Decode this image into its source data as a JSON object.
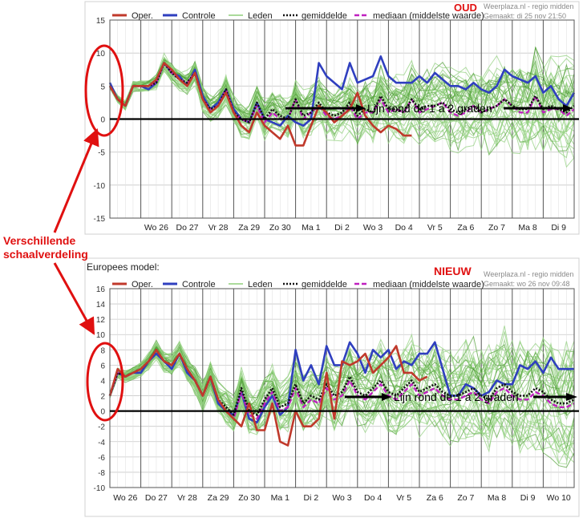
{
  "page": {
    "colors": {
      "operational": "#c0392b",
      "control": "#2f3fbf",
      "members": "#8fcf7a",
      "members_dark": "#4e9e34",
      "median": "#c020c0",
      "annotation": "#e01010",
      "axis_line": "#000000",
      "grid": "#c8c8c8"
    },
    "side_annotation": {
      "line1": "Verschillende",
      "line2": "schaalverdeling"
    },
    "header_caption": "Europees model:"
  },
  "chart_data": [
    {
      "type": "line",
      "id": "oud",
      "stamp": "OUD",
      "source": "Weerplaza.nl - regio midden",
      "made": "Gemaakt: di 25 nov 21:50",
      "legend": [
        "Oper.",
        "Controle",
        "Leden",
        "gemiddelde",
        "mediaan (middelste waarde)"
      ],
      "ylim": [
        -15,
        15
      ],
      "yticks": [
        15,
        10,
        5,
        0,
        -5,
        -10,
        -15
      ],
      "xlim": [
        0,
        60
      ],
      "day_ticks": [
        4,
        8,
        12,
        16,
        20,
        24,
        28,
        32,
        36,
        40,
        44,
        48,
        52,
        56
      ],
      "day_labels": [
        "Wo 26",
        "Do 27",
        "Vr 28",
        "Za 29",
        "Zo 30",
        "Ma 1",
        "Di 2",
        "Wo 3",
        "Do 4",
        "Vr 5",
        "Za 6",
        "Zo 7",
        "Ma 8",
        "Di 9"
      ],
      "annotation": "Lijn rond de 1 a 2 graden",
      "series": [
        {
          "name": "Oper.",
          "x": [
            0,
            1,
            2,
            3,
            4,
            5,
            6,
            7,
            8,
            9,
            10,
            11,
            12,
            13,
            14,
            15,
            16,
            17,
            18,
            19,
            20,
            21,
            22,
            23,
            24,
            25,
            26,
            27,
            28,
            29,
            30,
            31,
            32,
            33,
            34,
            35,
            36,
            37,
            38,
            39
          ],
          "values": [
            5,
            3,
            2,
            5,
            5,
            5,
            6,
            8.5,
            7.5,
            6,
            5,
            7,
            3,
            1,
            2,
            4,
            1,
            -1,
            -2,
            1,
            -1,
            -2,
            -3,
            -1,
            -4,
            -4,
            -1,
            2,
            1,
            -0.5,
            0.5,
            1.5,
            4,
            0.5,
            -1,
            -2,
            -1,
            -1.5,
            -2.5,
            -2.5
          ]
        },
        {
          "name": "Controle",
          "x": [
            0,
            1,
            2,
            3,
            4,
            5,
            6,
            7,
            8,
            9,
            10,
            11,
            12,
            13,
            14,
            15,
            16,
            17,
            18,
            19,
            20,
            21,
            22,
            23,
            24,
            25,
            26,
            27,
            28,
            29,
            30,
            31,
            32,
            33,
            34,
            35,
            36,
            37,
            38,
            39,
            40,
            41,
            42,
            43,
            44,
            45,
            46,
            47,
            48,
            49,
            50,
            51,
            52,
            53,
            54,
            55,
            56,
            57,
            58,
            59,
            60
          ],
          "values": [
            5.5,
            3,
            2,
            5,
            5,
            4.5,
            5.5,
            8.5,
            7,
            6.5,
            5,
            7.5,
            3.5,
            1.5,
            2.5,
            4.5,
            1.5,
            0,
            -0.5,
            2.5,
            0,
            -0.5,
            -1,
            0.5,
            -0.5,
            -1,
            0,
            8.5,
            6.5,
            5.5,
            4.5,
            8.5,
            5.5,
            6,
            6.5,
            9.5,
            6.5,
            5.5,
            5.5,
            5.5,
            6.5,
            5.5,
            7,
            6,
            5,
            5,
            4.5,
            5.5,
            4.5,
            4,
            5,
            7.5,
            6.5,
            6,
            5.5,
            6.5,
            4,
            5,
            3,
            2,
            4
          ]
        },
        {
          "name": "gemiddelde",
          "x": [
            0,
            1,
            2,
            3,
            4,
            5,
            6,
            7,
            8,
            9,
            10,
            11,
            12,
            13,
            14,
            15,
            16,
            17,
            18,
            19,
            20,
            21,
            22,
            23,
            24,
            25,
            26,
            27,
            28,
            29,
            30,
            31,
            32,
            33,
            34,
            35,
            36,
            37,
            38,
            39,
            40,
            41,
            42,
            43,
            44,
            45,
            46,
            47,
            48,
            49,
            50,
            51,
            52,
            53,
            54,
            55,
            56,
            57,
            58,
            59,
            60
          ],
          "values": [
            5,
            3,
            2,
            5,
            5,
            5,
            5.5,
            8.5,
            7,
            6,
            5.5,
            7,
            3,
            1.5,
            2,
            4.5,
            1,
            0,
            -0.5,
            2.5,
            0,
            1.5,
            0.5,
            0,
            3,
            0.5,
            1,
            2.5,
            1,
            0.5,
            1,
            2.5,
            0.5,
            1.5,
            1,
            3.5,
            1.5,
            1.5,
            1,
            3,
            1.5,
            2,
            2,
            2.5,
            1.5,
            1,
            1.5,
            2,
            1,
            1.5,
            2,
            3,
            2,
            1.5,
            1.5,
            3.5,
            1.5,
            2,
            1.5,
            1,
            2
          ]
        },
        {
          "name": "mediaan (middelste waarde)",
          "x": [
            0,
            1,
            2,
            3,
            4,
            5,
            6,
            7,
            8,
            9,
            10,
            11,
            12,
            13,
            14,
            15,
            16,
            17,
            18,
            19,
            20,
            21,
            22,
            23,
            24,
            25,
            26,
            27,
            28,
            29,
            30,
            31,
            32,
            33,
            34,
            35,
            36,
            37,
            38,
            39,
            40,
            41,
            42,
            43,
            44,
            45,
            46,
            47,
            48,
            49,
            50,
            51,
            52,
            53,
            54,
            55,
            56,
            57,
            58,
            59,
            60
          ],
          "values": [
            5,
            3,
            2,
            5,
            5,
            5,
            5.5,
            8.5,
            7,
            6,
            5.5,
            7,
            3,
            1.5,
            2,
            4.5,
            1,
            0,
            -0.5,
            2,
            -0.5,
            1,
            0,
            0,
            3,
            0,
            1,
            2,
            0.5,
            0,
            0.5,
            2,
            0,
            1,
            1,
            3,
            1,
            1.5,
            1,
            3,
            1,
            1.5,
            2,
            2.5,
            1,
            0.5,
            1,
            2,
            1,
            1.5,
            2,
            3,
            2,
            1,
            1,
            3.5,
            1,
            1.5,
            1.5,
            0.5,
            1.5
          ]
        }
      ]
    },
    {
      "type": "line",
      "id": "nieuw",
      "stamp": "NIEUW",
      "source": "Weerplaza.nl - regio midden",
      "made": "Gemaakt: wo 26 nov 09:48",
      "legend": [
        "Oper.",
        "Controle",
        "Leden",
        "gemiddelde",
        "mediaan (middelste waarde)"
      ],
      "ylim": [
        -10,
        16
      ],
      "yticks": [
        16,
        14,
        12,
        10,
        8,
        6,
        4,
        2,
        0,
        -2,
        -4,
        -6,
        -8,
        -10
      ],
      "xlim": [
        0,
        60
      ],
      "day_ticks": [
        0,
        4,
        8,
        12,
        16,
        20,
        24,
        28,
        32,
        36,
        40,
        44,
        48,
        52,
        56
      ],
      "day_labels": [
        "Wo 26",
        "Do 27",
        "Vr 28",
        "Za 29",
        "Zo 30",
        "Ma 1",
        "Di 2",
        "Wo 3",
        "Do 4",
        "Vr 5",
        "Za 6",
        "Zo 7",
        "Ma 8",
        "Di 9",
        "Wo 10"
      ],
      "annotation": "Lijn rond de 1 a 2 graden",
      "series": [
        {
          "name": "Oper.",
          "x": [
            0,
            1,
            2,
            3,
            4,
            5,
            6,
            7,
            8,
            9,
            10,
            11,
            12,
            13,
            14,
            15,
            16,
            17,
            18,
            19,
            20,
            21,
            22,
            23,
            24,
            25,
            26,
            27,
            28,
            29,
            30,
            31,
            32,
            33,
            34,
            35,
            36,
            37,
            38,
            39,
            40,
            41
          ],
          "values": [
            2,
            5.5,
            4.5,
            5,
            5.5,
            6.5,
            8,
            6.5,
            6,
            7.5,
            5.5,
            4,
            2,
            4.5,
            1.5,
            0,
            -1,
            -2,
            1,
            -2.5,
            -2.5,
            1,
            -4,
            -4.5,
            0,
            -2,
            -2,
            -1,
            5,
            -1,
            6.5,
            6,
            6.5,
            7.5,
            5,
            6,
            7,
            8.5,
            5,
            5,
            4,
            4.5
          ]
        },
        {
          "name": "Controle",
          "x": [
            0,
            1,
            2,
            3,
            4,
            5,
            6,
            7,
            8,
            9,
            10,
            11,
            12,
            13,
            14,
            15,
            16,
            17,
            18,
            19,
            20,
            21,
            22,
            23,
            24,
            25,
            26,
            27,
            28,
            29,
            30,
            31,
            32,
            33,
            34,
            35,
            36,
            37,
            38,
            39,
            40,
            41,
            42,
            43,
            44,
            45,
            46,
            47,
            48,
            49,
            50,
            51,
            52,
            53,
            54,
            55,
            56,
            57,
            58,
            59,
            60
          ],
          "values": [
            2,
            5,
            4.5,
            5,
            5,
            6.5,
            7.5,
            6.5,
            5.5,
            7.5,
            5,
            4,
            2,
            4.5,
            1,
            0,
            -0.5,
            2.5,
            -1,
            -1.5,
            0.5,
            2,
            -0.5,
            0.5,
            8,
            4,
            6,
            3.5,
            8.5,
            6,
            6,
            9,
            7.5,
            5,
            8,
            7,
            8,
            5.5,
            6.5,
            6,
            7.5,
            7.5,
            9,
            5.5,
            2,
            2,
            3.5,
            3,
            2,
            2.5,
            4,
            3.5,
            3.5,
            6,
            5.5,
            6.5,
            5,
            7,
            5.5,
            5.5,
            5.5
          ]
        },
        {
          "name": "gemiddelde",
          "x": [
            0,
            1,
            2,
            3,
            4,
            5,
            6,
            7,
            8,
            9,
            10,
            11,
            12,
            13,
            14,
            15,
            16,
            17,
            18,
            19,
            20,
            21,
            22,
            23,
            24,
            25,
            26,
            27,
            28,
            29,
            30,
            31,
            32,
            33,
            34,
            35,
            36,
            37,
            38,
            39,
            40,
            41,
            42,
            43,
            44,
            45,
            46,
            47,
            48,
            49,
            50,
            51,
            52,
            53,
            54,
            55,
            56,
            57,
            58,
            59,
            60
          ],
          "values": [
            2,
            5,
            4.5,
            5,
            5.5,
            6.5,
            8,
            6.5,
            6,
            7.5,
            5.5,
            4,
            2,
            4.5,
            1.5,
            0.5,
            -0.5,
            3,
            0,
            -0.5,
            1.5,
            3,
            0.5,
            1,
            3.5,
            1,
            2,
            1.5,
            3.5,
            2,
            2.5,
            4.5,
            2.5,
            2,
            3,
            4,
            2.5,
            2,
            3,
            4,
            2.5,
            3,
            3.5,
            2.5,
            2,
            2,
            2.5,
            3,
            2,
            1.5,
            3,
            3.5,
            2.5,
            2,
            2,
            3,
            2.5,
            1.5,
            1,
            1,
            1.5
          ]
        },
        {
          "name": "mediaan (middelste waarde)",
          "x": [
            0,
            1,
            2,
            3,
            4,
            5,
            6,
            7,
            8,
            9,
            10,
            11,
            12,
            13,
            14,
            15,
            16,
            17,
            18,
            19,
            20,
            21,
            22,
            23,
            24,
            25,
            26,
            27,
            28,
            29,
            30,
            31,
            32,
            33,
            34,
            35,
            36,
            37,
            38,
            39,
            40,
            41,
            42,
            43,
            44,
            45,
            46,
            47,
            48,
            49,
            50,
            51,
            52,
            53,
            54,
            55,
            56,
            57,
            58,
            59,
            60
          ],
          "values": [
            2,
            5,
            4.5,
            5,
            5.5,
            6.5,
            8,
            6.5,
            6,
            7.5,
            5.5,
            4,
            2,
            4.5,
            1.5,
            0,
            -1,
            2.5,
            -0.5,
            -1,
            1,
            2.5,
            0,
            0.5,
            3,
            0.5,
            1.5,
            1,
            3,
            1.5,
            2,
            4,
            2,
            1.5,
            2.5,
            3.5,
            2,
            1.5,
            2.5,
            3.5,
            2,
            2.5,
            3,
            2,
            1.5,
            1.5,
            2,
            2.5,
            1.5,
            1,
            2.5,
            3,
            2,
            1.5,
            1.5,
            2.5,
            2,
            1,
            0.5,
            0.5,
            1
          ]
        }
      ]
    }
  ]
}
